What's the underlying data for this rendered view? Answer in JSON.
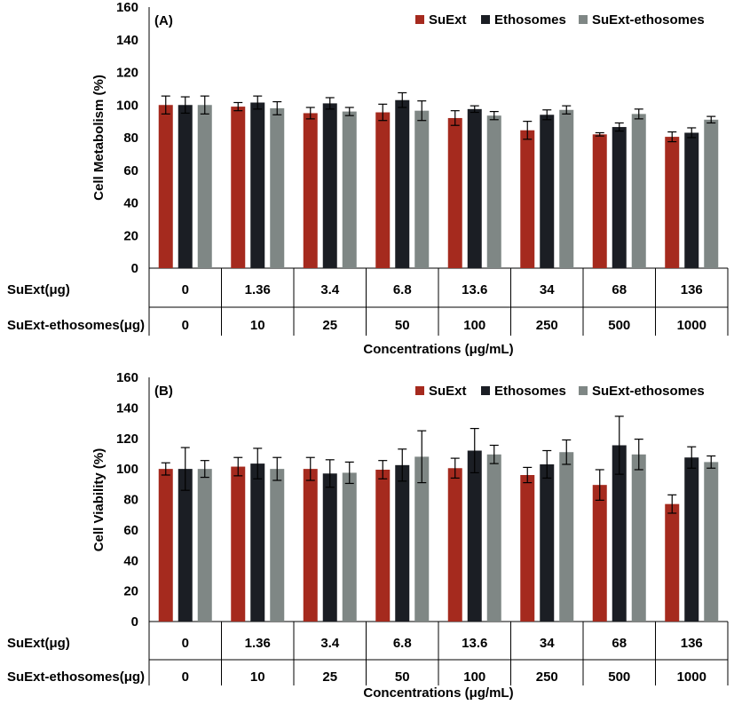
{
  "colors": {
    "SuExt": "#a52a1e",
    "Ethosomes": "#1b1e24",
    "SuExt-ethosomes": "#7f8785"
  },
  "shared": {
    "row1_label": "SuExt(μg)",
    "row2_label": "SuExt-ethosomes(μg)",
    "row1_values": [
      "0",
      "1.36",
      "3.4",
      "6.8",
      "13.6",
      "34",
      "68",
      "136"
    ],
    "row2_values": [
      "0",
      "10",
      "25",
      "50",
      "100",
      "250",
      "500",
      "1000"
    ]
  },
  "chart_data": [
    {
      "type": "bar",
      "panel": "(A)",
      "title": "",
      "xlabel": "Concentrations (μg/mL)",
      "ylabel": "Cell Metabolism (%)",
      "ylim": [
        0,
        160
      ],
      "yticks": [
        0,
        20,
        40,
        60,
        80,
        100,
        120,
        140,
        160
      ],
      "ytick_labels": [
        "0",
        "20",
        "40",
        "60",
        "80",
        "100",
        "120",
        "140",
        "160"
      ],
      "legend_position": "top-right",
      "categories": [
        "0",
        "1.36",
        "3.4",
        "6.8",
        "13.6",
        "34",
        "68",
        "136"
      ],
      "series": [
        {
          "name": "SuExt",
          "values": [
            100,
            99,
            95,
            95.5,
            92,
            84.5,
            82,
            80.5
          ],
          "errors": [
            5.5,
            2.5,
            3.5,
            5,
            4.5,
            5.5,
            1,
            3
          ]
        },
        {
          "name": "Ethosomes",
          "values": [
            100,
            101.5,
            101,
            103,
            97.5,
            94,
            86.5,
            83
          ],
          "errors": [
            5,
            4,
            3.5,
            4.5,
            2,
            3,
            2.5,
            3
          ]
        },
        {
          "name": "SuExt-ethosomes",
          "values": [
            100,
            98,
            96,
            96.5,
            93.5,
            97,
            94.5,
            91
          ],
          "errors": [
            5.5,
            4,
            2.5,
            6,
            2.5,
            2.5,
            3,
            2
          ]
        }
      ]
    },
    {
      "type": "bar",
      "panel": "(B)",
      "title": "",
      "xlabel": "Concentrations (μg/mL)",
      "ylabel": "Cell Viability (%)",
      "ylim": [
        0,
        160
      ],
      "yticks": [
        0,
        20,
        40,
        60,
        80,
        100,
        120,
        140,
        160
      ],
      "ytick_labels": [
        "0",
        "20",
        "40",
        "60",
        "80",
        "100",
        "120",
        "140",
        "160"
      ],
      "legend_position": "top-right",
      "categories": [
        "0",
        "1.36",
        "3.4",
        "6.8",
        "13.6",
        "34",
        "68",
        "136"
      ],
      "series": [
        {
          "name": "SuExt",
          "values": [
            100,
            101.5,
            100,
            99.5,
            100.5,
            96,
            89.5,
            77
          ],
          "errors": [
            4,
            6,
            7.5,
            6,
            6.5,
            5,
            10,
            6
          ]
        },
        {
          "name": "Ethosomes",
          "values": [
            100,
            103.5,
            97,
            102.5,
            112,
            103,
            115.5,
            107.5
          ],
          "errors": [
            14,
            10,
            9,
            10.5,
            14.5,
            9,
            19,
            7
          ]
        },
        {
          "name": "SuExt-ethosomes",
          "values": [
            100,
            100,
            97.5,
            108,
            109.5,
            111,
            109.5,
            104.5
          ],
          "errors": [
            5.5,
            7.5,
            7,
            17,
            6,
            8,
            10,
            4
          ]
        }
      ]
    }
  ]
}
